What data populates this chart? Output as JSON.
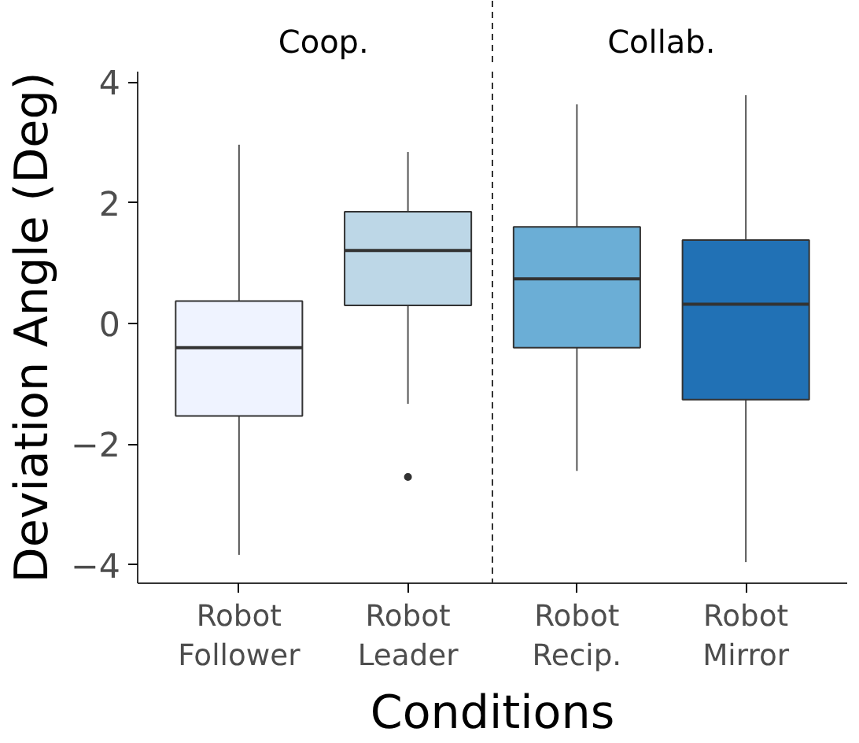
{
  "chart_data": {
    "type": "box",
    "xlabel": "Conditions",
    "ylabel": "Deviation Angle (Deg)",
    "categories": [
      "Robot\nFollower",
      "Robot\nLeader",
      "Robot\nRecip.",
      "Robot\nMirror"
    ],
    "colors": [
      "#eff3ff",
      "#bdd7e7",
      "#6baed6",
      "#2171b5"
    ],
    "boxes": [
      {
        "low": -3.83,
        "q1": -1.53,
        "median": -0.4,
        "q3": 0.37,
        "high": 2.96
      },
      {
        "low": -1.33,
        "q1": 0.3,
        "median": 1.21,
        "q3": 1.85,
        "high": 2.84,
        "outliers": [
          -2.54
        ]
      },
      {
        "low": -2.44,
        "q1": -0.4,
        "median": 0.74,
        "q3": 1.6,
        "high": 3.63
      },
      {
        "low": -3.95,
        "q1": -1.26,
        "median": 0.32,
        "q3": 1.38,
        "high": 3.78
      }
    ],
    "ylim": [
      -4.3,
      4.17
    ],
    "yticks": [
      -4,
      -2,
      0,
      2,
      4
    ],
    "grid": false,
    "annotations": [
      "Coop.",
      "Collab."
    ]
  }
}
